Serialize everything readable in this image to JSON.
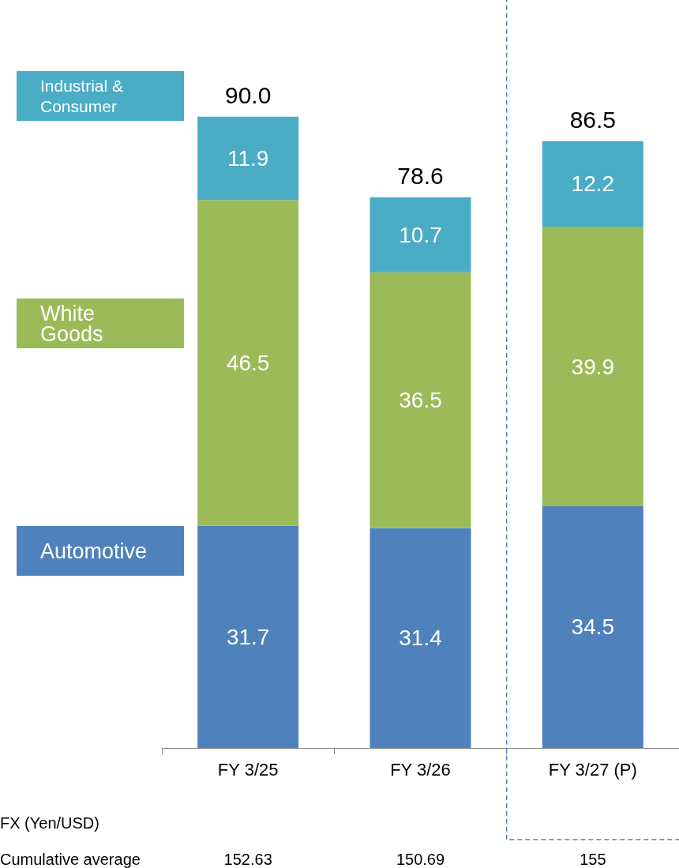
{
  "chart_data": {
    "type": "bar",
    "stacked": true,
    "data_labels": true,
    "legend": "left",
    "categories": [
      "FY 3/25",
      "FY 3/26",
      "FY 3/27 (P)"
    ],
    "series": [
      {
        "name": "Automotive",
        "color": "#4f81bd",
        "values": [
          31.7,
          31.4,
          34.5
        ]
      },
      {
        "name": "White Goods",
        "color": "#9bbb59",
        "values": [
          46.5,
          36.5,
          39.9
        ]
      },
      {
        "name": "Industrial & Consumer",
        "color": "#4bacc6",
        "values": [
          11.9,
          10.7,
          12.2
        ]
      }
    ],
    "totals": [
      "90.0",
      "78.6",
      "86.5"
    ],
    "annotations": [
      "FX (Yen/USD)",
      "Cumulative average",
      "152.63",
      "150.69",
      "155"
    ]
  }
}
